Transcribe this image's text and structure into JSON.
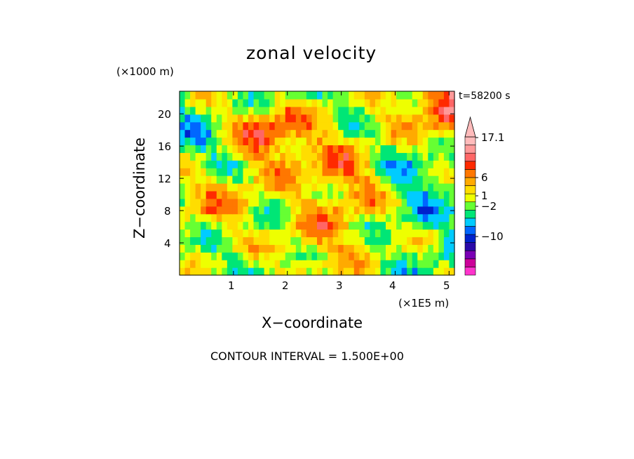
{
  "chart_data": {
    "type": "heatmap",
    "title": "zonal velocity",
    "xlabel": "X−coordinate",
    "ylabel": "Z−coordinate",
    "x_unit_label": "(×1E5 m)",
    "y_unit_label": "(×1000 m)",
    "time_label": "t=58200 s",
    "footer": "CONTOUR INTERVAL = 1.500E+00",
    "xlim": [
      0,
      5.1
    ],
    "ylim": [
      0,
      22.8
    ],
    "x_ticks": [
      "1",
      "2",
      "3",
      "4",
      "5"
    ],
    "y_ticks": [
      "4",
      "8",
      "12",
      "16",
      "20"
    ],
    "colorbar": {
      "labels": [
        "17.1",
        "6",
        "1",
        "−2",
        "−10"
      ],
      "label_values": [
        17.1,
        6,
        1,
        -2,
        -10
      ],
      "colors": [
        "#ff33cc",
        "#cc0099",
        "#7a00b4",
        "#2a0aa8",
        "#0022cc",
        "#0066ff",
        "#00ccff",
        "#00e676",
        "#66ff33",
        "#eeff00",
        "#ffdd00",
        "#ffaa00",
        "#ff7700",
        "#ff2a00",
        "#ff6666",
        "#ff9999",
        "#ffbbbb"
      ],
      "extend_top": true
    },
    "field_description_values": {
      "nx": 52,
      "nz": 24,
      "features": [
        {
          "x": 1.7,
          "z": 18.5,
          "value": 8.5
        },
        {
          "x": 3.2,
          "z": 12.0,
          "value": 5.0
        },
        {
          "x": 0.8,
          "z": 9.0,
          "value": 4.0
        },
        {
          "x": 5.0,
          "z": 21.0,
          "value": 7.0
        },
        {
          "x": 4.2,
          "z": 12.5,
          "value": -3.5
        },
        {
          "x": 0.6,
          "z": 17.0,
          "value": -3.0
        },
        {
          "x": 1.9,
          "z": 22.0,
          "value": -3.5
        },
        {
          "x": 1.3,
          "z": 6.0,
          "value": -1.5
        },
        {
          "x": 4.8,
          "z": 3.5,
          "value": -1.0
        },
        {
          "x": 2.6,
          "z": 4.0,
          "value": 3.5
        }
      ]
    }
  }
}
